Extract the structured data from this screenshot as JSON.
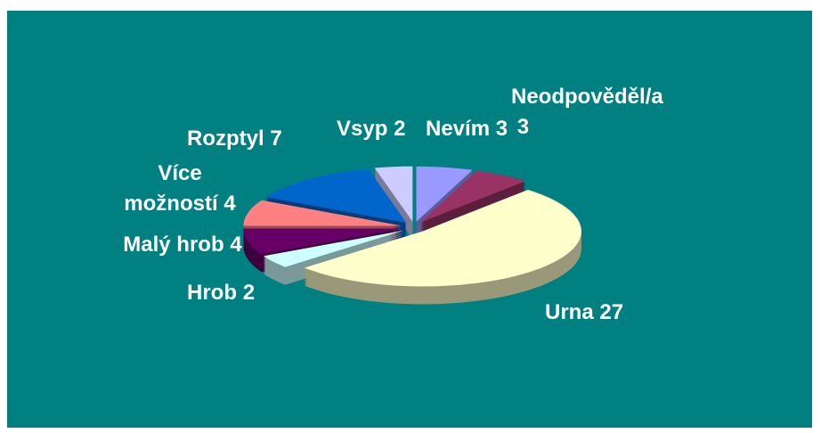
{
  "chart_data": {
    "type": "pie3d",
    "categories": [
      "Nevím",
      "Neodpověděl/a",
      "Urna",
      "Hrob",
      "Malý hrob",
      "Více možností",
      "Rozptyl",
      "Vsyp"
    ],
    "values": [
      3,
      3,
      27,
      2,
      4,
      4,
      7,
      2
    ],
    "colors": [
      "#9999ff",
      "#993366",
      "#ffffcc",
      "#ccffff",
      "#660066",
      "#ff8080",
      "#0066cc",
      "#ccccff"
    ]
  }
}
